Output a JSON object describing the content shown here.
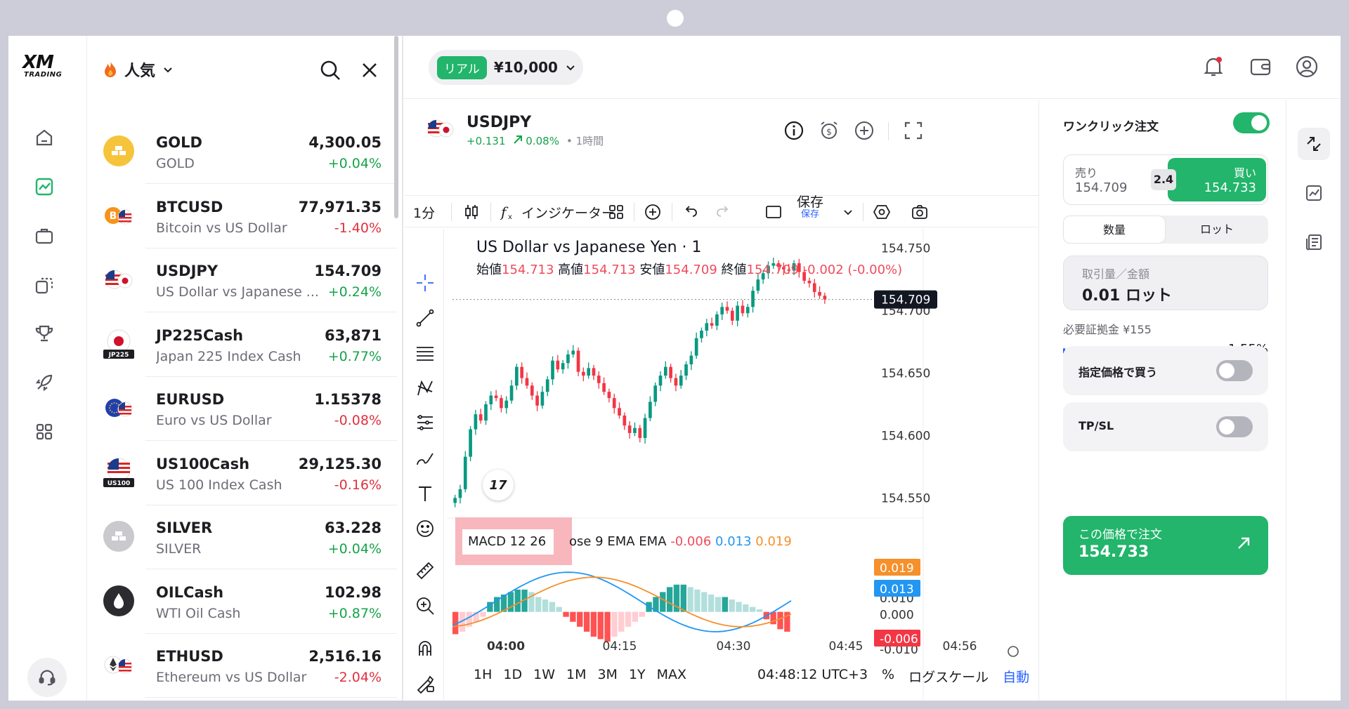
{
  "brand": {
    "logo_main": "XM",
    "logo_sub": "TRADING"
  },
  "rail": {
    "items": [
      "home-icon",
      "chart-icon",
      "briefcase-icon",
      "copy-icon",
      "trophy-icon",
      "rocket-icon",
      "apps-icon"
    ],
    "support": "headset-icon"
  },
  "markets": {
    "title": "人気",
    "items": [
      {
        "symbol": "GOLD",
        "name": "GOLD",
        "price": "4,300.05",
        "change": "+0.04%",
        "dir": "up",
        "icon": "gold-bars-icon"
      },
      {
        "symbol": "BTCUSD",
        "name": "Bitcoin vs US Dollar",
        "price": "77,971.35",
        "change": "-1.40%",
        "dir": "down",
        "icon": "bitcoin-usd-icon"
      },
      {
        "symbol": "USDJPY",
        "name": "US Dollar vs Japanese ...",
        "price": "154.709",
        "change": "+0.24%",
        "dir": "up",
        "icon": "usd-jpy-flags-icon"
      },
      {
        "symbol": "JP225Cash",
        "name": "Japan 225 Index Cash",
        "price": "63,871",
        "change": "+0.77%",
        "dir": "up",
        "icon": "jp225-icon",
        "tag": "JP225"
      },
      {
        "symbol": "EURUSD",
        "name": "Euro vs US Dollar",
        "price": "1.15378",
        "change": "-0.08%",
        "dir": "down",
        "icon": "eur-usd-flags-icon"
      },
      {
        "symbol": "US100Cash",
        "name": "US 100 Index Cash",
        "price": "29,125.30",
        "change": "-0.16%",
        "dir": "down",
        "icon": "us100-icon",
        "tag": "US100"
      },
      {
        "symbol": "SILVER",
        "name": "SILVER",
        "price": "63.228",
        "change": "+0.04%",
        "dir": "up",
        "icon": "silver-bars-icon"
      },
      {
        "symbol": "OILCash",
        "name": "WTI Oil Cash",
        "price": "102.98",
        "change": "+0.87%",
        "dir": "up",
        "icon": "oil-drop-icon"
      },
      {
        "symbol": "ETHUSD",
        "name": "Ethereum vs US Dollar",
        "price": "2,516.16",
        "change": "-2.04%",
        "dir": "down",
        "icon": "eth-usd-icon"
      }
    ]
  },
  "account": {
    "type": "リアル",
    "balance": "¥10,000"
  },
  "instrument": {
    "symbol": "USDJPY",
    "change_abs": "+0.131",
    "change_pct": "0.08%",
    "timeframe": "• 1時間"
  },
  "toolbar": {
    "interval": "1分",
    "indicators": "インジケーター",
    "save": "保存",
    "save_sub": "保存"
  },
  "chart": {
    "title": "US Dollar vs Japanese Yen · 1",
    "ohlc": {
      "open_label": "始値",
      "open": "154.713",
      "high_label": "高値",
      "high": "154.713",
      "low_label": "安値",
      "low": "154.709",
      "close_label": "終値",
      "close": "154.709",
      "change": "-0.002 (-0.00%)"
    },
    "price_axis": [
      "154.750",
      "154.700",
      "154.650",
      "154.600",
      "154.550"
    ],
    "last_price": "154.709",
    "macd": {
      "label": "MACD 12 26",
      "label_rest": "ose 9 EMA EMA",
      "macd": "-0.006",
      "signal": "0.013",
      "hist": "0.019"
    },
    "macd_axis": {
      "orange_tag": "0.019",
      "blue_tag": "0.013",
      "behind_tag": "0.010",
      "zero": "0.000",
      "red_tag": "-0.006",
      "bottom": "-0.010"
    },
    "time_axis": [
      "04:00",
      "04:15",
      "04:30",
      "04:45",
      "04:56"
    ],
    "ranges": [
      "1H",
      "1D",
      "1W",
      "1M",
      "3M",
      "1Y",
      "MAX"
    ],
    "clock": "04:48:12 UTC+3",
    "percent": "%",
    "log": "ログスケール",
    "auto": "自動"
  },
  "chart_data": {
    "type": "candlestick",
    "title": "US Dollar vs Japanese Yen · 1",
    "x_ticks": [
      "04:00",
      "04:15",
      "04:30",
      "04:45"
    ],
    "y_ticks": [
      154.55,
      154.6,
      154.65,
      154.7,
      154.75
    ],
    "ylim": [
      154.535,
      154.765
    ],
    "close_series": [
      154.55,
      154.557,
      154.583,
      154.605,
      154.617,
      154.612,
      154.625,
      154.632,
      154.63,
      154.622,
      154.628,
      154.64,
      154.655,
      154.646,
      154.64,
      154.632,
      154.624,
      154.635,
      154.645,
      154.66,
      154.653,
      154.658,
      154.665,
      154.668,
      154.651,
      154.648,
      154.654,
      154.648,
      154.642,
      154.635,
      154.63,
      154.622,
      154.616,
      154.608,
      154.602,
      154.606,
      154.598,
      154.614,
      154.627,
      154.64,
      154.648,
      154.655,
      154.646,
      154.64,
      154.648,
      154.657,
      154.664,
      154.678,
      154.684,
      154.69,
      154.688,
      154.697,
      154.703,
      154.7,
      154.692,
      154.704,
      154.698,
      154.703,
      154.716,
      154.725,
      154.73,
      154.736,
      154.738,
      154.735,
      154.733,
      154.732,
      154.738,
      154.731,
      154.724,
      154.722,
      154.715,
      154.712,
      154.709
    ],
    "macd_hist": [
      -0.009,
      -0.008,
      -0.006,
      -0.004,
      -0.002,
      0.004,
      0.006,
      0.007,
      0.008,
      0.009,
      0.009,
      0.008,
      0.006,
      0.005,
      0.004,
      0.002,
      -0.002,
      -0.004,
      -0.006,
      -0.008,
      -0.01,
      -0.011,
      -0.012,
      -0.01,
      -0.008,
      -0.006,
      -0.004,
      -0.002,
      0.004,
      0.006,
      0.008,
      0.01,
      0.011,
      0.011,
      0.01,
      0.009,
      0.008,
      0.007,
      0.006,
      0.006,
      0.005,
      0.004,
      0.003,
      0.002,
      0.001,
      -0.003,
      -0.005,
      -0.007,
      -0.008
    ],
    "macd_ylim": [
      -0.012,
      0.022
    ]
  },
  "order": {
    "one_click": "ワンクリック注文",
    "sell_label": "売り",
    "sell_price": "154.709",
    "spread": "2.4",
    "buy_label": "買い",
    "buy_price": "154.733",
    "seg_qty": "数量",
    "seg_lot": "ロット",
    "qty_label": "取引量／金額",
    "qty_value": "0.01 ロット",
    "margin": "必要証拠金 ¥155",
    "margin_pct": "1.55%",
    "margin_fraction": 0.0155,
    "limit_buy": "指定価格で買う",
    "tpsl": "TP/SL",
    "place_label": "この価格で注文",
    "place_price": "154.733"
  },
  "colors": {
    "green": "#22b56b",
    "red": "#ef4b5a",
    "blue": "#2196f3",
    "orange": "#f5902b"
  }
}
